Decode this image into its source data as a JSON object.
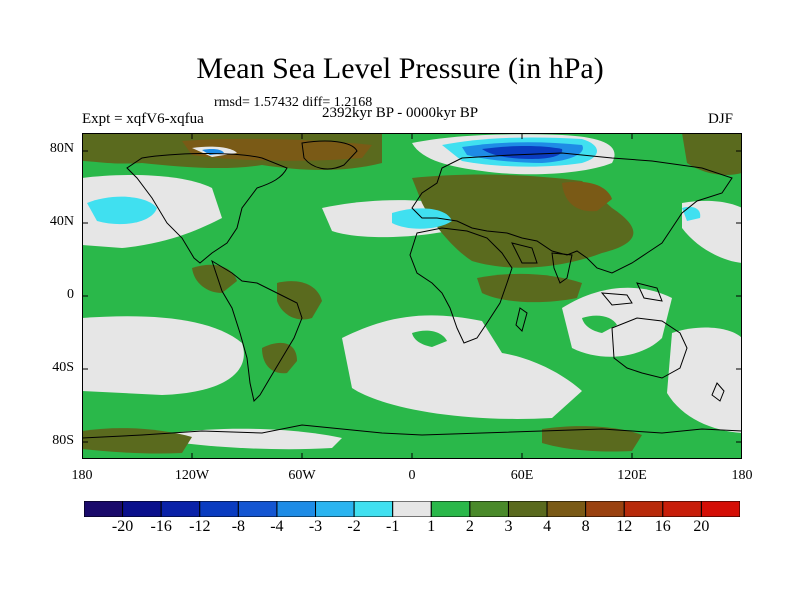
{
  "title": "Mean Sea Level Pressure (in hPa)",
  "stats": "rmsd= 1.57432 diff= 1.2168",
  "experiment": "Expt = xqfV6-xqfua",
  "period": "2392kyr BP - 0000kyr BP",
  "season": "DJF",
  "map": {
    "lat_ticks": [
      "80N",
      "40N",
      "0",
      "40S",
      "80S"
    ],
    "lon_ticks": [
      "180",
      "120W",
      "60W",
      "0",
      "60E",
      "120E",
      "180"
    ]
  },
  "colorbar": {
    "labels": [
      "-20",
      "-16",
      "-12",
      "-8",
      "-4",
      "-3",
      "-2",
      "-1",
      "1",
      "2",
      "3",
      "4",
      "8",
      "12",
      "16",
      "20"
    ],
    "colors": [
      "#1a0a6b",
      "#0a108c",
      "#0a22a8",
      "#0a3cc0",
      "#1456d2",
      "#1e8ce6",
      "#2ab4f0",
      "#40e0f0",
      "#e6e6e6",
      "#2ab84a",
      "#4a8a2a",
      "#5a6a1e",
      "#7a5a16",
      "#9a4210",
      "#b82a0a",
      "#c81e0a",
      "#d40e06"
    ]
  }
}
